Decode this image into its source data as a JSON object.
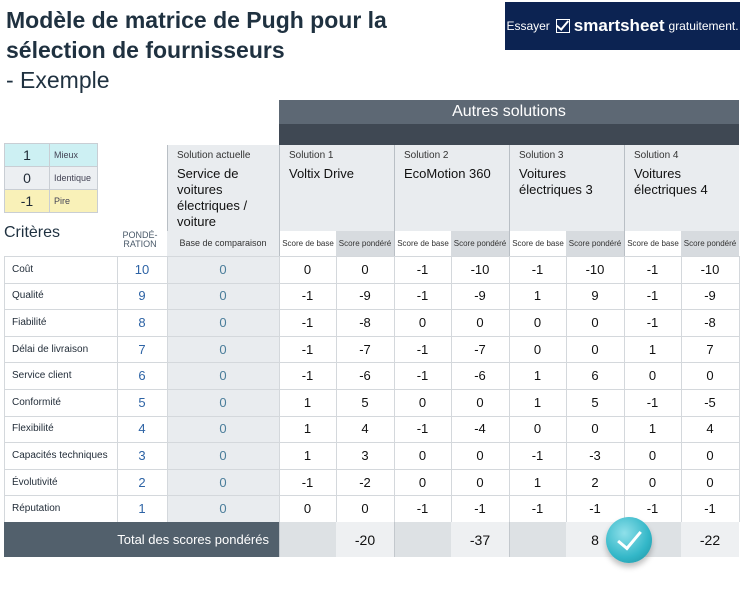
{
  "title": {
    "main": "Modèle de matrice de Pugh pour la sélection de fournisseurs",
    "sub": "- Exemple"
  },
  "banner": {
    "pre": "Essayer",
    "brand": "smartsheet",
    "post": "gratuitement.",
    "color": "#0c2352"
  },
  "legend": [
    {
      "value": "1",
      "label": "Mieux",
      "color": "#cdf0f3"
    },
    {
      "value": "0",
      "label": "Identique",
      "color": "#eceff2"
    },
    {
      "value": "-1",
      "label": "Pire",
      "color": "#f9f1b8"
    }
  ],
  "header": {
    "autres": "Autres solutions",
    "criteres": "Critères",
    "ponderation": "PONDÉ-\nRATION",
    "current_cap": "Solution actuelle",
    "current_name": "Service de voitures électriques / voiture",
    "base_comparaison": "Base de comparaison",
    "score_base": "Score de base",
    "score_pondere": "Score pondéré"
  },
  "solutions": [
    {
      "cap": "Solution 1",
      "name": "Voltix Drive"
    },
    {
      "cap": "Solution 2",
      "name": "EcoMotion 360"
    },
    {
      "cap": "Solution 3",
      "name": "Voitures électriques 3"
    },
    {
      "cap": "Solution 4",
      "name": "Voitures électriques 4"
    }
  ],
  "rows": [
    {
      "crit": "Coût",
      "w": "10",
      "base": "0",
      "s": [
        [
          "0",
          "0"
        ],
        [
          "-1",
          "-10"
        ],
        [
          "-1",
          "-10"
        ],
        [
          "-1",
          "-10"
        ]
      ]
    },
    {
      "crit": "Qualité",
      "w": "9",
      "base": "0",
      "s": [
        [
          "-1",
          "-9"
        ],
        [
          "-1",
          "-9"
        ],
        [
          "1",
          "9"
        ],
        [
          "-1",
          "-9"
        ]
      ]
    },
    {
      "crit": "Fiabilité",
      "w": "8",
      "base": "0",
      "s": [
        [
          "-1",
          "-8"
        ],
        [
          "0",
          "0"
        ],
        [
          "0",
          "0"
        ],
        [
          "-1",
          "-8"
        ]
      ]
    },
    {
      "crit": "Délai de livraison",
      "w": "7",
      "base": "0",
      "s": [
        [
          "-1",
          "-7"
        ],
        [
          "-1",
          "-7"
        ],
        [
          "0",
          "0"
        ],
        [
          "1",
          "7"
        ]
      ]
    },
    {
      "crit": "Service client",
      "w": "6",
      "base": "0",
      "s": [
        [
          "-1",
          "-6"
        ],
        [
          "-1",
          "-6"
        ],
        [
          "1",
          "6"
        ],
        [
          "0",
          "0"
        ]
      ]
    },
    {
      "crit": "Conformité",
      "w": "5",
      "base": "0",
      "s": [
        [
          "1",
          "5"
        ],
        [
          "0",
          "0"
        ],
        [
          "1",
          "5"
        ],
        [
          "-1",
          "-5"
        ]
      ]
    },
    {
      "crit": "Flexibilité",
      "w": "4",
      "base": "0",
      "s": [
        [
          "1",
          "4"
        ],
        [
          "-1",
          "-4"
        ],
        [
          "0",
          "0"
        ],
        [
          "1",
          "4"
        ]
      ]
    },
    {
      "crit": "Capacités techniques",
      "w": "3",
      "base": "0",
      "s": [
        [
          "1",
          "3"
        ],
        [
          "0",
          "0"
        ],
        [
          "-1",
          "-3"
        ],
        [
          "0",
          "0"
        ]
      ]
    },
    {
      "crit": "Évolutivité",
      "w": "2",
      "base": "0",
      "s": [
        [
          "-1",
          "-2"
        ],
        [
          "0",
          "0"
        ],
        [
          "1",
          "2"
        ],
        [
          "0",
          "0"
        ]
      ]
    },
    {
      "crit": "Réputation",
      "w": "1",
      "base": "0",
      "s": [
        [
          "0",
          "0"
        ],
        [
          "-1",
          "-1"
        ],
        [
          "-1",
          "-1"
        ],
        [
          "-1",
          "-1"
        ]
      ]
    }
  ],
  "total": {
    "label": "Total des scores pondérés",
    "values": [
      "-20",
      "-37",
      "8",
      "-22"
    ]
  },
  "badge_icon": "checkmark-badge-icon"
}
